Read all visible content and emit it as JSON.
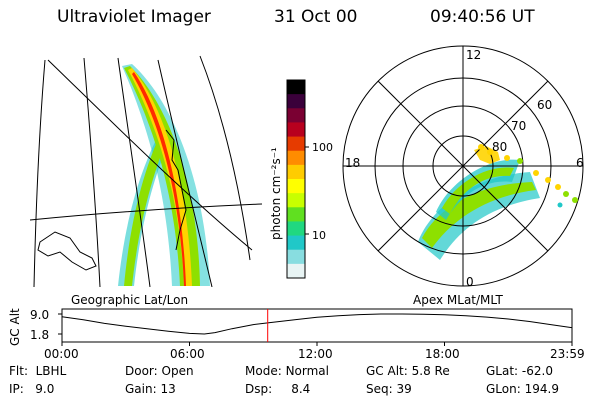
{
  "header": {
    "instrument": "Ultraviolet Imager",
    "date": "31 Oct 00",
    "time": "09:40:56 UT"
  },
  "colorbar": {
    "label": "photon cm⁻²s⁻¹",
    "ticks": [
      "100",
      "10"
    ],
    "colors": [
      "#000000",
      "#3a003a",
      "#7a0032",
      "#b8001e",
      "#e63b00",
      "#ff8c00",
      "#ffcc00",
      "#ffff00",
      "#c8ff00",
      "#60e020",
      "#20d880",
      "#20c8c8",
      "#88dde0",
      "#e8f4f4"
    ]
  },
  "left_panel": {
    "caption": "Geographic Lat/Lon",
    "aurora_colors": {
      "core": "#ff2a00",
      "band": "#ffd400",
      "halo": "#8ee000",
      "outer": "#20c8c8"
    }
  },
  "right_panel": {
    "caption": "Apex MLat/MLT",
    "mlt_labels": {
      "top": "12",
      "left": "18",
      "right": "6",
      "bottom": "0"
    },
    "lat_labels": [
      "60",
      "70",
      "80"
    ]
  },
  "altitude_plot": {
    "ylabel": "GC Alt",
    "yticks": [
      "9.0",
      "1.8"
    ],
    "xticks": [
      "00:00",
      "06:00",
      "12:00",
      "18:00",
      "23:59"
    ],
    "current_time_marker_color": "#ff0000",
    "curve": [
      {
        "t": 0.0,
        "alt": 8.0
      },
      {
        "t": 1.0,
        "alt": 6.9
      },
      {
        "t": 2.0,
        "alt": 5.6
      },
      {
        "t": 3.0,
        "alt": 4.6
      },
      {
        "t": 4.0,
        "alt": 3.7
      },
      {
        "t": 5.0,
        "alt": 2.8
      },
      {
        "t": 6.0,
        "alt": 2.0
      },
      {
        "t": 6.7,
        "alt": 1.8
      },
      {
        "t": 7.2,
        "alt": 2.3
      },
      {
        "t": 8.0,
        "alt": 3.7
      },
      {
        "t": 9.0,
        "alt": 5.2
      },
      {
        "t": 9.68,
        "alt": 5.8
      },
      {
        "t": 11.0,
        "alt": 7.0
      },
      {
        "t": 12.0,
        "alt": 7.8
      },
      {
        "t": 13.0,
        "alt": 8.4
      },
      {
        "t": 14.0,
        "alt": 8.8
      },
      {
        "t": 15.0,
        "alt": 9.0
      },
      {
        "t": 16.0,
        "alt": 9.0
      },
      {
        "t": 17.0,
        "alt": 8.9
      },
      {
        "t": 18.0,
        "alt": 8.7
      },
      {
        "t": 19.0,
        "alt": 8.4
      },
      {
        "t": 20.0,
        "alt": 7.9
      },
      {
        "t": 21.0,
        "alt": 7.2
      },
      {
        "t": 22.0,
        "alt": 6.3
      },
      {
        "t": 23.0,
        "alt": 5.2
      },
      {
        "t": 23.98,
        "alt": 4.1
      }
    ],
    "marker_time": 9.68
  },
  "info": {
    "flt": {
      "label": "Flt:",
      "value": "LBHL"
    },
    "ip": {
      "label": "IP:",
      "value": "9.0"
    },
    "door": {
      "label": "Door:",
      "value": "Open"
    },
    "gain": {
      "label": "Gain:",
      "value": "13"
    },
    "mode": {
      "label": "Mode:",
      "value": "Normal"
    },
    "dsp": {
      "label": "Dsp:",
      "value": "8.4"
    },
    "gcalt": {
      "label": "GC Alt:",
      "value": "5.8 Re"
    },
    "seq": {
      "label": "Seq:",
      "value": "39"
    },
    "glat": {
      "label": "GLat:",
      "value": "-62.0"
    },
    "glon": {
      "label": "GLon:",
      "value": "194.9"
    }
  }
}
